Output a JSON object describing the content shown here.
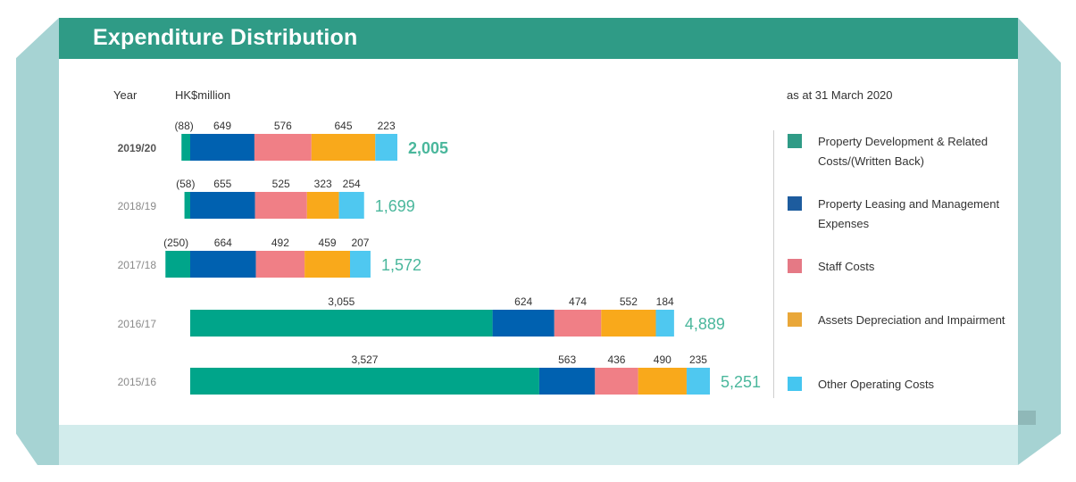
{
  "header": {
    "title": "Expenditure Distribution"
  },
  "labels": {
    "year_header": "Year",
    "unit_header": "HK$million",
    "as_at": "as at 31 March 2020"
  },
  "colors": {
    "header": "#2f9b86",
    "series": [
      "#00a58a",
      "#0061b0",
      "#f07f86",
      "#f9a91b",
      "#4fc8f0"
    ],
    "total_text": "#4ab79c"
  },
  "legend": [
    {
      "label": "Property Development & Related Costs/(Written Back)",
      "color": "#2f9b86"
    },
    {
      "label": "Property Leasing and Management Expenses",
      "color": "#1d5c9e"
    },
    {
      "label": "Staff Costs",
      "color": "#e57985"
    },
    {
      "label": "Assets Depreciation and Impairment",
      "color": "#e9a739"
    },
    {
      "label": "Other Operating Costs",
      "color": "#45c6f0"
    }
  ],
  "chart_data": {
    "type": "bar",
    "orientation": "horizontal",
    "stacked": true,
    "categories": [
      "2019/20",
      "2018/19",
      "2017/18",
      "2016/17",
      "2015/16"
    ],
    "series": [
      {
        "name": "Property Development & Related Costs/(Written Back)",
        "values": [
          -88,
          -58,
          -250,
          3055,
          3527
        ],
        "labels": [
          "(88)",
          "(58)",
          "(250)",
          "3,055",
          "3,527"
        ]
      },
      {
        "name": "Property Leasing and Management Expenses",
        "values": [
          649,
          655,
          664,
          624,
          563
        ],
        "labels": [
          "649",
          "655",
          "664",
          "624",
          "563"
        ]
      },
      {
        "name": "Staff Costs",
        "values": [
          576,
          525,
          492,
          474,
          436
        ],
        "labels": [
          "576",
          "525",
          "492",
          "474",
          "436"
        ]
      },
      {
        "name": "Assets Depreciation and Impairment",
        "values": [
          645,
          323,
          459,
          552,
          490
        ],
        "labels": [
          "645",
          "323",
          "459",
          "552",
          "490"
        ]
      },
      {
        "name": "Other Operating Costs",
        "values": [
          223,
          254,
          207,
          184,
          235
        ],
        "labels": [
          "223",
          "254",
          "207",
          "184",
          "235"
        ]
      }
    ],
    "totals": [
      2005,
      1699,
      1572,
      4889,
      5251
    ],
    "total_labels": [
      "2,005",
      "1,699",
      "1,572",
      "4,889",
      "5,251"
    ],
    "highlight_category": "2019/20",
    "xlabel": "",
    "ylabel": "Year",
    "unit": "HK$million",
    "legend_position": "right"
  }
}
